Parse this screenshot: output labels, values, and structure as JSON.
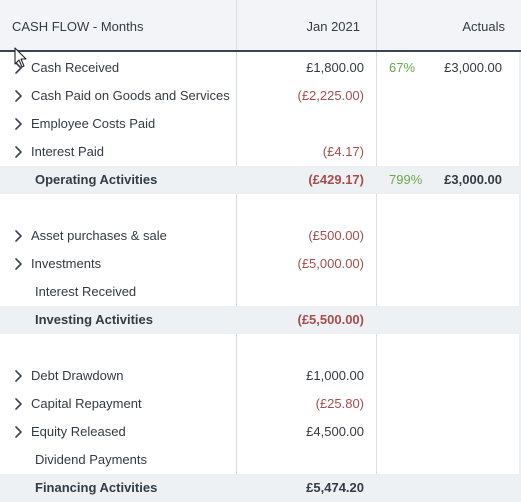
{
  "header": {
    "title": "CASH FLOW - Months",
    "col_period": "Jan 2021",
    "col_actuals": "Actuals"
  },
  "rows": [
    {
      "label": "Cash Received",
      "expandable": true,
      "jan": "£1,800.00",
      "jan_negative": false,
      "pct": "67%",
      "actual": "£3,000.00"
    },
    {
      "label": "Cash Paid on Goods and Services",
      "expandable": true,
      "jan": "(£2,225.00)",
      "jan_negative": true,
      "pct": "",
      "actual": ""
    },
    {
      "label": "Employee Costs Paid",
      "expandable": true,
      "jan": "",
      "jan_negative": false,
      "pct": "",
      "actual": ""
    },
    {
      "label": "Interest Paid",
      "expandable": true,
      "jan": "(£4.17)",
      "jan_negative": true,
      "pct": "",
      "actual": ""
    },
    {
      "label": "Operating Activities",
      "subtotal": true,
      "jan": "(£429.17)",
      "jan_negative": true,
      "pct": "799%",
      "actual": "£3,000.00"
    },
    {
      "label": "Asset purchases & sale",
      "expandable": true,
      "jan": "(£500.00)",
      "jan_negative": true,
      "pct": "",
      "actual": ""
    },
    {
      "label": "Investments",
      "expandable": true,
      "jan": "(£5,000.00)",
      "jan_negative": true,
      "pct": "",
      "actual": ""
    },
    {
      "label": "Interest Received",
      "expandable": false,
      "jan": "",
      "jan_negative": false,
      "pct": "",
      "actual": ""
    },
    {
      "label": "Investing Activities",
      "subtotal": true,
      "jan": "(£5,500.00)",
      "jan_negative": true,
      "pct": "",
      "actual": ""
    },
    {
      "label": "Debt Drawdown",
      "expandable": true,
      "jan": "£1,000.00",
      "jan_negative": false,
      "pct": "",
      "actual": ""
    },
    {
      "label": "Capital Repayment",
      "expandable": true,
      "jan": "(£25.80)",
      "jan_negative": true,
      "pct": "",
      "actual": ""
    },
    {
      "label": "Equity Released",
      "expandable": true,
      "jan": "£4,500.00",
      "jan_negative": false,
      "pct": "",
      "actual": ""
    },
    {
      "label": "Dividend Payments",
      "expandable": false,
      "jan": "",
      "jan_negative": false,
      "pct": "",
      "actual": ""
    },
    {
      "label": "Financing Activities",
      "subtotal": true,
      "jan": "£5,474.20",
      "jan_negative": false,
      "pct": "",
      "actual": ""
    }
  ],
  "colors": {
    "negative": "#a84d4d",
    "percent": "#6aa84f",
    "subtotal_bg": "#eef1f4",
    "header_bg": "#f2f4f7",
    "header_border": "#3b4552"
  },
  "icons": {
    "expand": "chevron-right-icon",
    "cursor": "mouse-pointer-icon"
  }
}
